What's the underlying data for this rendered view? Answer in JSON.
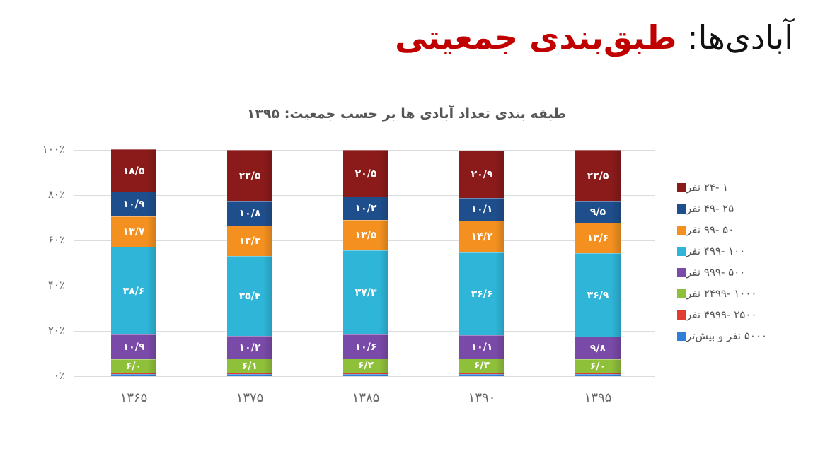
{
  "slide": {
    "title_prefix": "آبادی‌ها: ",
    "title_accent": "طبق‌بندی جمعیتی"
  },
  "chart_data": {
    "type": "bar",
    "stacked": true,
    "title": "طبقه بندی تعداد آبادی ها بر حسب جمعیت: ۱۳۹۵",
    "xlabel": "",
    "ylabel": "",
    "ylim": [
      0,
      100
    ],
    "yticks": [
      "۰٪",
      "۲۰٪",
      "۴۰٪",
      "۶۰٪",
      "۸۰٪",
      "۱۰۰٪"
    ],
    "categories": [
      "۱۳۶۵",
      "۱۳۷۵",
      "۱۳۸۵",
      "۱۳۹۰",
      "۱۳۹۵"
    ],
    "legend_position": "right",
    "grid": true,
    "note": "Bottom-segment labels (2500-4999 and 5000+) overlap and are illegible; their values were not read from the image and are left null.",
    "series": [
      {
        "name": "۱ -۲۴ نفر",
        "color": "#8b1a1a",
        "values": [
          18.5,
          22.5,
          20.5,
          20.9,
          22.5
        ],
        "labels": [
          "۱۸/۵",
          "۲۲/۵",
          "۲۰/۵",
          "۲۰/۹",
          "۲۲/۵"
        ]
      },
      {
        "name": "۲۵ -۴۹ نفر",
        "color": "#1f4e8c",
        "values": [
          10.9,
          10.8,
          10.2,
          10.1,
          9.5
        ],
        "labels": [
          "۱۰/۹",
          "۱۰/۸",
          "۱۰/۲",
          "۱۰/۱",
          "۹/۵"
        ]
      },
      {
        "name": "۵۰ -۹۹ نفر",
        "color": "#f39020",
        "values": [
          13.7,
          13.3,
          13.5,
          14.2,
          13.6
        ],
        "labels": [
          "۱۳/۷",
          "۱۳/۳",
          "۱۳/۵",
          "۱۴/۲",
          "۱۳/۶"
        ]
      },
      {
        "name": "۱۰۰ -۴۹۹ نفر",
        "color": "#2eb5d8",
        "values": [
          38.6,
          35.4,
          37.3,
          36.6,
          36.9
        ],
        "labels": [
          "۳۸/۶",
          "۳۵/۴",
          "۳۷/۳",
          "۳۶/۶",
          "۳۶/۹"
        ]
      },
      {
        "name": "۵۰۰ -۹۹۹ نفر",
        "color": "#7a4aa8",
        "values": [
          10.9,
          10.2,
          10.6,
          10.1,
          9.8
        ],
        "labels": [
          "۱۰/۹",
          "۱۰/۲",
          "۱۰/۶",
          "۱۰/۱",
          "۹/۸"
        ]
      },
      {
        "name": "۱۰۰۰ -۲۴۹۹ نفر",
        "color": "#8fc03a",
        "values": [
          6.0,
          6.1,
          6.2,
          6.3,
          6.0
        ],
        "labels": [
          "۶/۰",
          "۶/۱",
          "۶/۲",
          "۶/۳",
          "۶/۰"
        ]
      },
      {
        "name": "۲۵۰۰ -۴۹۹۹ نفر",
        "color": "#e03c31",
        "values": [
          null,
          null,
          null,
          null,
          null
        ],
        "labels": []
      },
      {
        "name": "۵۰۰۰ نفر و بیش‌تر",
        "color": "#2f7fd6",
        "values": [
          null,
          null,
          null,
          null,
          null
        ],
        "labels": []
      }
    ]
  }
}
